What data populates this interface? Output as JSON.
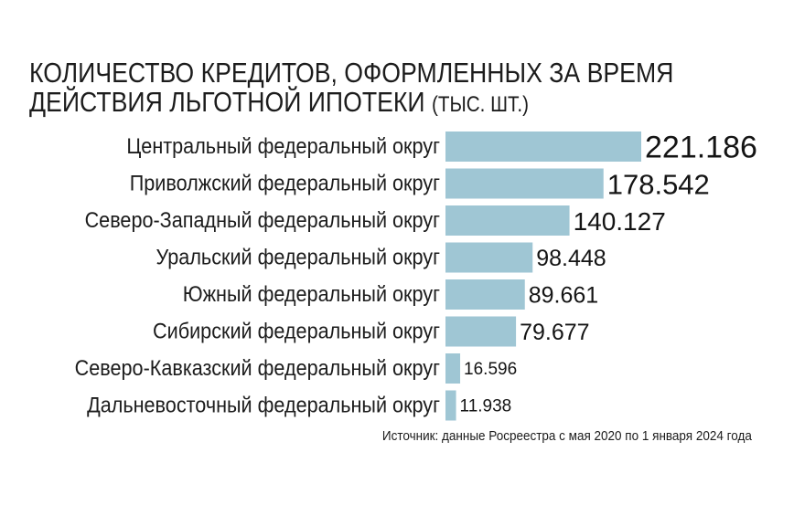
{
  "title_line1": "КОЛИЧЕСТВО КРЕДИТОВ, ОФОРМЛЕННЫХ ЗА ВРЕМЯ",
  "title_line2": "ДЕЙСТВИЯ ЛЬГОТНОЙ ИПОТЕКИ",
  "unit": "(ТЫС. ШТ.)",
  "source": "Источник: данные Росреестра с мая 2020 по 1 января 2024 года",
  "colors": {
    "bar": "#9fc6d4",
    "text": "#1c1c1c"
  },
  "chart_data": {
    "type": "bar",
    "orientation": "horizontal",
    "title": "КОЛИЧЕСТВО КРЕДИТОВ, ОФОРМЛЕННЫХ ЗА ВРЕМЯ ДЕЙСТВИЯ ЛЬГОТНОЙ ИПОТЕКИ (ТЫС. ШТ.)",
    "categories": [
      "Центральный федеральный округ",
      "Приволжский федеральный округ",
      "Северо-Западный федеральный округ",
      "Уральский федеральный округ",
      "Южный федеральный округ",
      "Сибирский федеральный округ",
      "Северо-Кавказский федеральный округ",
      "Дальневосточный федеральный округ"
    ],
    "values": [
      221.186,
      178.542,
      140.127,
      98.448,
      89.661,
      79.677,
      16.596,
      11.938
    ],
    "value_labels": [
      "221.186",
      "178.542",
      "140.127",
      "98.448",
      "89.661",
      "79.677",
      "16.596",
      "11.938"
    ],
    "grid": false,
    "legend": "none"
  }
}
